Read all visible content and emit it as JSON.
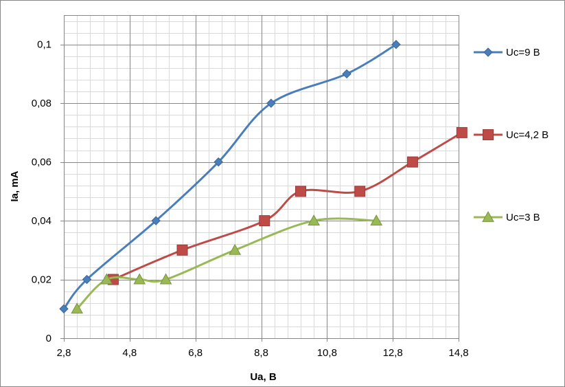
{
  "chart_data": {
    "type": "scatter",
    "title": "",
    "xlabel": "Ua, В",
    "ylabel": "Ia, mA",
    "xlim": [
      2.8,
      14.8
    ],
    "ylim": [
      0,
      0.11
    ],
    "x_ticks": [
      "2,8",
      "4,8",
      "6,8",
      "8,8",
      "10,8",
      "12,8",
      "14,8"
    ],
    "x_tick_values": [
      2.8,
      4.8,
      6.8,
      8.8,
      10.8,
      12.8,
      14.8
    ],
    "y_ticks": [
      "0",
      "0,02",
      "0,04",
      "0,06",
      "0,08",
      "0,1"
    ],
    "y_tick_values": [
      0,
      0.02,
      0.04,
      0.06,
      0.08,
      0.1
    ],
    "x_minor_step": 0.4,
    "y_minor_step": 0.004,
    "grid": true,
    "legend_position": "right",
    "series": [
      {
        "name": "Uc=9 В",
        "color": "#4a7ebb",
        "marker": "diamond",
        "x": [
          2.8,
          3.5,
          5.6,
          7.5,
          9.1,
          11.4,
          12.9
        ],
        "y": [
          0.01,
          0.02,
          0.04,
          0.06,
          0.08,
          0.09,
          0.1
        ]
      },
      {
        "name": "Uc=4,2 В",
        "color": "#be4b48",
        "marker": "square",
        "x": [
          4.3,
          6.4,
          8.9,
          10.0,
          11.8,
          13.4,
          14.9
        ],
        "y": [
          0.02,
          0.03,
          0.04,
          0.05,
          0.05,
          0.06,
          0.07
        ]
      },
      {
        "name": "Uc=3 В",
        "color": "#98b954",
        "marker": "triangle",
        "x": [
          3.2,
          4.1,
          5.1,
          5.9,
          8.0,
          10.4,
          12.3
        ],
        "y": [
          0.01,
          0.02,
          0.02,
          0.02,
          0.03,
          0.04,
          0.04
        ]
      }
    ]
  }
}
